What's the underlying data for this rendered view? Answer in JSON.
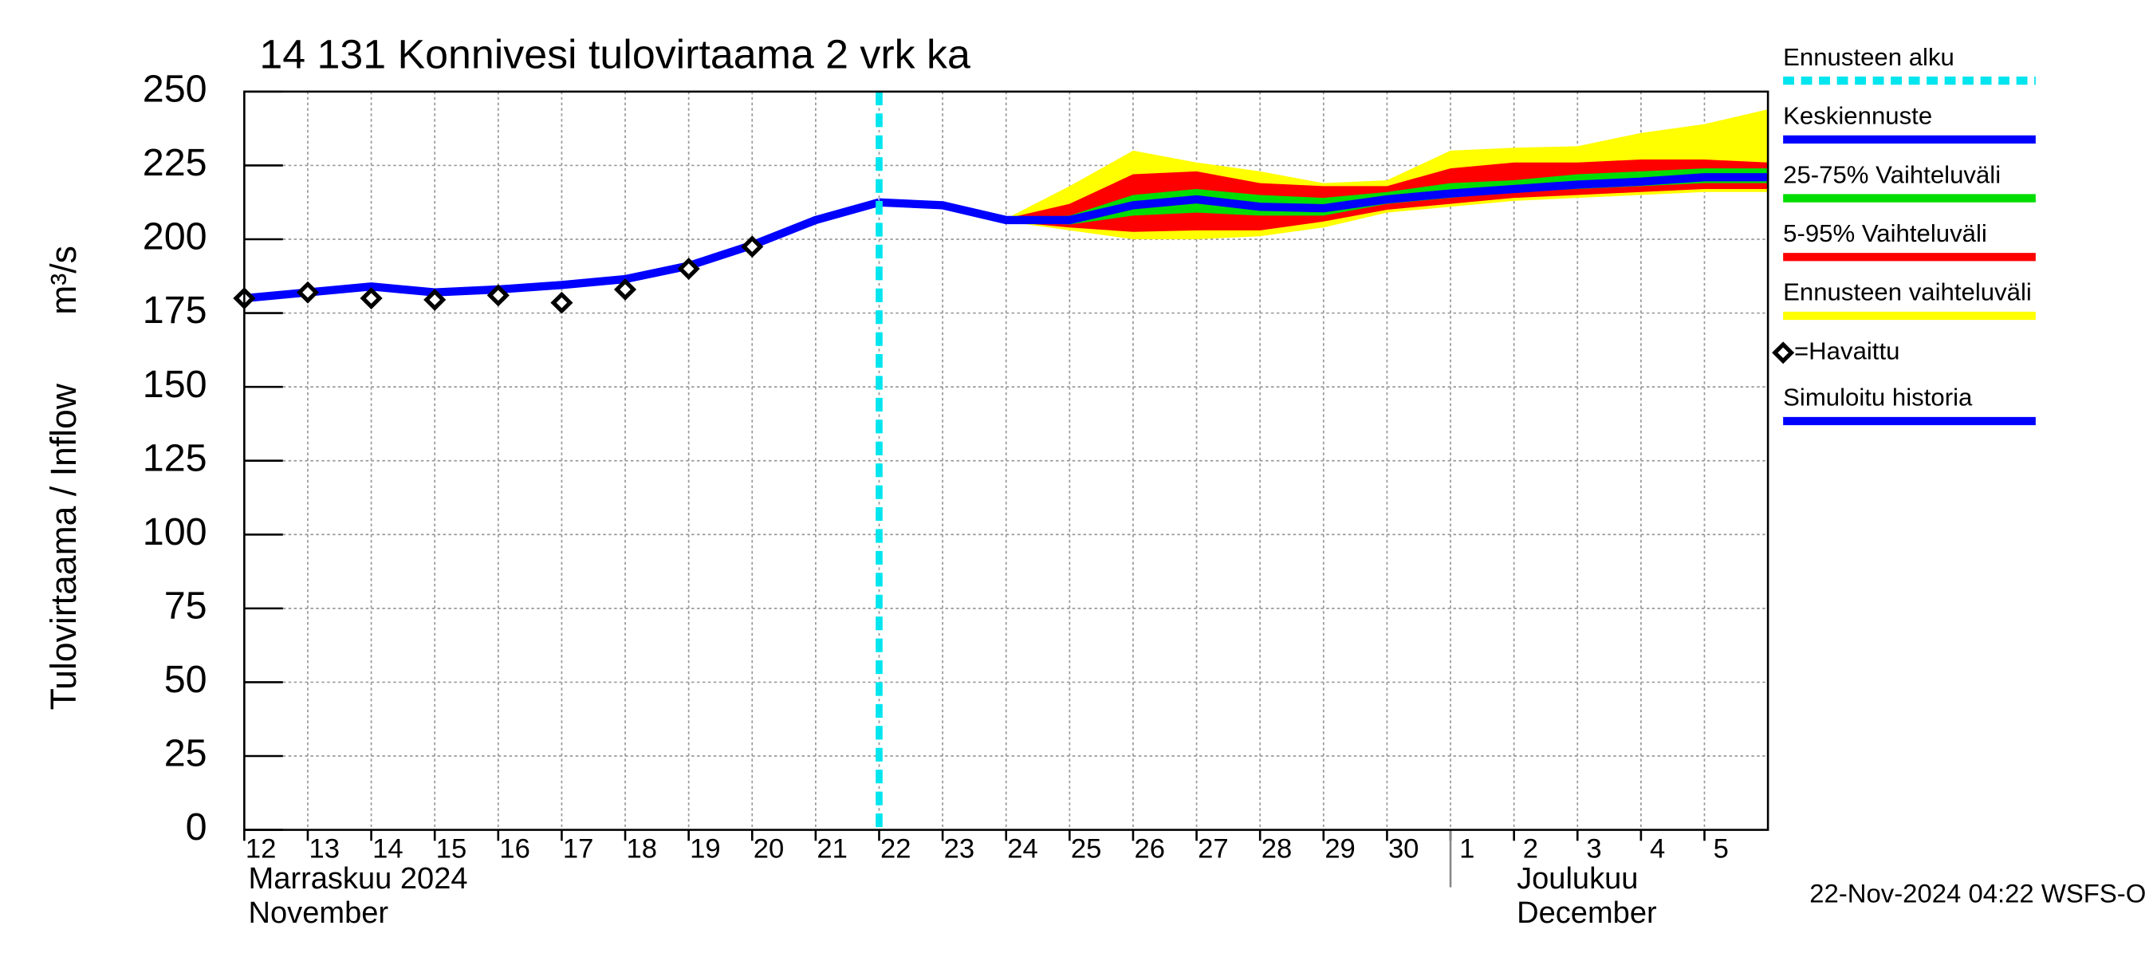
{
  "chart_data": {
    "type": "line",
    "title": "14 131 Konnivesi tulovirtaama 2 vrk ka",
    "y_label": "Tulovirtaama / Inflow",
    "y_unit": "m³/s",
    "footer": "22-Nov-2024 04:22 WSFS-O",
    "ylim": [
      0,
      250
    ],
    "yticks": [
      0,
      25,
      50,
      75,
      100,
      125,
      150,
      175,
      200,
      225,
      250
    ],
    "xlim": [
      "2024-11-12",
      "2024-12-06"
    ],
    "xticks": [
      {
        "value": "2024-11-12",
        "label": "12"
      },
      {
        "value": "2024-11-13",
        "label": "13"
      },
      {
        "value": "2024-11-14",
        "label": "14"
      },
      {
        "value": "2024-11-15",
        "label": "15"
      },
      {
        "value": "2024-11-16",
        "label": "16"
      },
      {
        "value": "2024-11-17",
        "label": "17"
      },
      {
        "value": "2024-11-18",
        "label": "18"
      },
      {
        "value": "2024-11-19",
        "label": "19"
      },
      {
        "value": "2024-11-20",
        "label": "20"
      },
      {
        "value": "2024-11-21",
        "label": "21"
      },
      {
        "value": "2024-11-22",
        "label": "22"
      },
      {
        "value": "2024-11-23",
        "label": "23"
      },
      {
        "value": "2024-11-24",
        "label": "24"
      },
      {
        "value": "2024-11-25",
        "label": "25"
      },
      {
        "value": "2024-11-26",
        "label": "26"
      },
      {
        "value": "2024-11-27",
        "label": "27"
      },
      {
        "value": "2024-11-28",
        "label": "28"
      },
      {
        "value": "2024-11-29",
        "label": "29"
      },
      {
        "value": "2024-11-30",
        "label": "30"
      },
      {
        "value": "2024-12-01",
        "label": "1"
      },
      {
        "value": "2024-12-02",
        "label": "2"
      },
      {
        "value": "2024-12-03",
        "label": "3"
      },
      {
        "value": "2024-12-04",
        "label": "4"
      },
      {
        "value": "2024-12-05",
        "label": "5"
      }
    ],
    "months": [
      {
        "start": "2024-11-12",
        "names": [
          "Marraskuu 2024",
          "November"
        ]
      },
      {
        "start": "2024-12-01",
        "names": [
          "Joulukuu",
          "December"
        ]
      }
    ],
    "grid": true,
    "forecast_start": {
      "name": "Ennusteen alku",
      "color": "#00e5ee",
      "x": "2024-11-22"
    },
    "bands": [
      {
        "name": "Ennusteen vaihteluväli",
        "color": "#ffff00",
        "x": [
          "2024-11-24",
          "2024-11-25",
          "2024-11-26",
          "2024-11-27",
          "2024-11-28",
          "2024-11-29",
          "2024-11-30",
          "2024-12-01",
          "2024-12-02",
          "2024-12-03",
          "2024-12-04",
          "2024-12-05",
          "2024-12-06"
        ],
        "high": [
          207,
          218,
          230,
          226,
          223,
          219,
          220,
          230,
          231,
          231.5,
          236,
          239,
          244
        ],
        "low": [
          206,
          203,
          200,
          200,
          201,
          204,
          209,
          211,
          213,
          214,
          215,
          216,
          216
        ]
      },
      {
        "name": "5-95% Vaihteluväli",
        "color": "#ff0000",
        "x": [
          "2024-11-24",
          "2024-11-25",
          "2024-11-26",
          "2024-11-27",
          "2024-11-28",
          "2024-11-29",
          "2024-11-30",
          "2024-12-01",
          "2024-12-02",
          "2024-12-03",
          "2024-12-04",
          "2024-12-05",
          "2024-12-06"
        ],
        "high": [
          207,
          212,
          222,
          223,
          219,
          218,
          218,
          224,
          226,
          226,
          227,
          227,
          226
        ],
        "low": [
          206,
          204,
          202.5,
          203,
          203,
          206,
          210,
          212,
          214,
          215,
          216,
          217,
          217
        ]
      },
      {
        "name": "25-75% Vaihteluväli",
        "color": "#00dd00",
        "x": [
          "2024-11-24",
          "2024-11-25",
          "2024-11-26",
          "2024-11-27",
          "2024-11-28",
          "2024-11-29",
          "2024-11-30",
          "2024-12-01",
          "2024-12-02",
          "2024-12-03",
          "2024-12-04",
          "2024-12-05",
          "2024-12-06"
        ],
        "high": [
          207,
          208,
          215,
          217,
          215,
          214,
          216,
          219,
          220,
          222,
          223,
          224,
          224
        ],
        "low": [
          206,
          205,
          208,
          209,
          208,
          208,
          212,
          214,
          216,
          217,
          218,
          219,
          219
        ]
      }
    ],
    "series": [
      {
        "name": "Keskiennuste",
        "color": "#0000ff",
        "x": [
          "2024-11-22",
          "2024-11-23",
          "2024-11-24",
          "2024-11-25",
          "2024-11-26",
          "2024-11-27",
          "2024-11-28",
          "2024-11-29",
          "2024-11-30",
          "2024-12-01",
          "2024-12-02",
          "2024-12-03",
          "2024-12-04",
          "2024-12-05",
          "2024-12-06"
        ],
        "values": [
          212.5,
          211.5,
          206.5,
          206.5,
          211.5,
          213.5,
          211,
          210.5,
          213.5,
          215.5,
          217,
          218.5,
          219.5,
          221,
          221
        ]
      },
      {
        "name": "Simuloitu historia",
        "color": "#0000ff",
        "x": [
          "2024-11-12",
          "2024-11-13",
          "2024-11-14",
          "2024-11-15",
          "2024-11-16",
          "2024-11-17",
          "2024-11-18",
          "2024-11-19",
          "2024-11-20",
          "2024-11-21",
          "2024-11-22"
        ],
        "values": [
          180,
          182,
          184,
          182,
          183,
          184.5,
          186.5,
          191,
          198,
          206.5,
          212.5
        ]
      }
    ],
    "observed": {
      "name": "=Havaittu",
      "color": "#000000",
      "x": [
        "2024-11-12",
        "2024-11-13",
        "2024-11-14",
        "2024-11-15",
        "2024-11-16",
        "2024-11-17",
        "2024-11-18",
        "2024-11-19",
        "2024-11-20"
      ],
      "values": [
        180,
        182,
        180,
        179.5,
        181,
        178.5,
        183,
        190,
        197.5
      ]
    }
  }
}
